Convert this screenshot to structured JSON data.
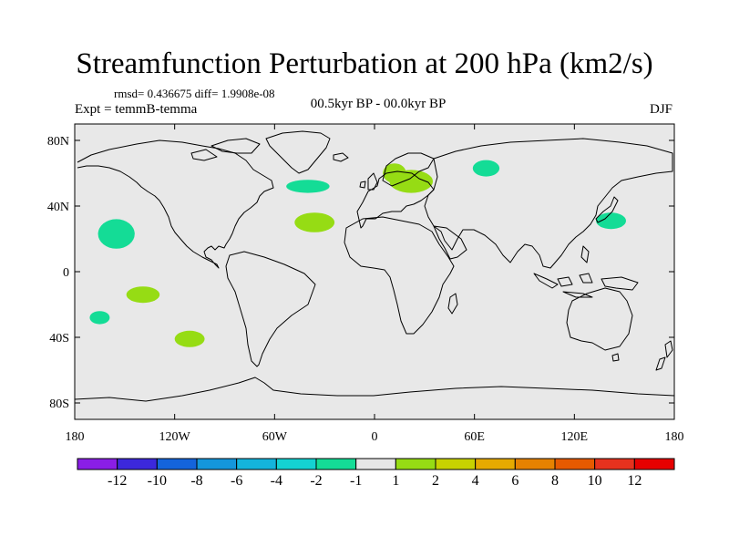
{
  "title": "Streamfunction Perturbation at 200 hPa (km2/s)",
  "stats": "rmsd= 0.436675 diff= 1.9908e-08",
  "left_label": "Expt = temmB-temma",
  "center_label": "00.5kyr BP - 00.0kyr BP",
  "right_label": "DJF",
  "colors": {
    "background": "#ffffff",
    "map_fill": "#e8e8e8",
    "coastline": "#000000"
  },
  "chart_data": {
    "type": "contour_map",
    "projection": "cylindrical_equidistant",
    "lon_range": [
      -180,
      180
    ],
    "lat_range": [
      -90,
      90
    ],
    "x_ticks": [
      {
        "value": -180,
        "label": "180"
      },
      {
        "value": -120,
        "label": "120W"
      },
      {
        "value": -60,
        "label": "60W"
      },
      {
        "value": 0,
        "label": "0"
      },
      {
        "value": 60,
        "label": "60E"
      },
      {
        "value": 120,
        "label": "120E"
      },
      {
        "value": 180,
        "label": "180"
      }
    ],
    "y_ticks": [
      {
        "value": 80,
        "label": "80N"
      },
      {
        "value": 40,
        "label": "40N"
      },
      {
        "value": 0,
        "label": "0"
      },
      {
        "value": -40,
        "label": "40S"
      },
      {
        "value": -80,
        "label": "80S"
      }
    ],
    "colorbar": {
      "labels": [
        "-12",
        "-10",
        "-8",
        "-6",
        "-4",
        "-2",
        "-1",
        "1",
        "2",
        "4",
        "6",
        "8",
        "10",
        "12"
      ],
      "colors": [
        "#8a1ee6",
        "#3c28dc",
        "#1464dc",
        "#1496dc",
        "#14b4dc",
        "#14d2d2",
        "#14dc96",
        "#e6e6e6",
        "#96dc14",
        "#c8d200",
        "#e6aa00",
        "#e68200",
        "#e65a00",
        "#e6321e",
        "#e60000"
      ]
    },
    "anomalies": [
      {
        "lon": -155,
        "lat": 23,
        "rlon": 11,
        "rlat": 9,
        "value": -2
      },
      {
        "lon": -40,
        "lat": 52,
        "rlon": 13,
        "rlat": 4,
        "value": -2
      },
      {
        "lon": 67,
        "lat": 63,
        "rlon": 8,
        "rlat": 5,
        "value": -2
      },
      {
        "lon": 142,
        "lat": 31,
        "rlon": 9,
        "rlat": 5,
        "value": -2
      },
      {
        "lon": -165,
        "lat": -28,
        "rlon": 6,
        "rlat": 4,
        "value": -2
      },
      {
        "lon": -36,
        "lat": 30,
        "rlon": 12,
        "rlat": 6,
        "value": 1
      },
      {
        "lon": 12,
        "lat": 60,
        "rlon": 7,
        "rlat": 6,
        "value": 1
      },
      {
        "lon": 22,
        "lat": 55,
        "rlon": 13,
        "rlat": 7,
        "value": 1
      },
      {
        "lon": -139,
        "lat": -14,
        "rlon": 10,
        "rlat": 5,
        "value": 1
      },
      {
        "lon": -111,
        "lat": -41,
        "rlon": 9,
        "rlat": 5,
        "value": 1
      }
    ]
  }
}
